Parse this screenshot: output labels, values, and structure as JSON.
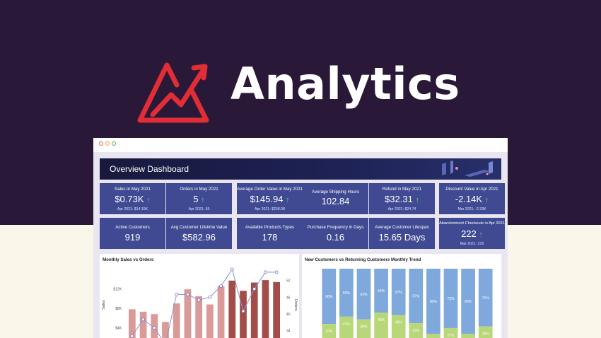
{
  "brand": {
    "title": "Analytics",
    "logo_icon": "zoho-analytics-logo-icon",
    "accent": "#e12d35"
  },
  "colors": {
    "background_top": "#2a1838",
    "background_bottom": "#fbf6ea",
    "kpi_bg": "#3f4a93",
    "up_arrow": "#63d283"
  },
  "window": {
    "controls": [
      "close",
      "minimize",
      "maximize"
    ]
  },
  "dashboard": {
    "title": "Overview Dashboard",
    "kpis_row1": [
      {
        "label": "Sales in May 2021",
        "value": "$0.73K",
        "arrow": "↑",
        "sub": "Apr 2021: $14.19K"
      },
      {
        "label": "Orders in May 2021",
        "value": "5",
        "arrow": "↑",
        "sub": "Apr 2021: 55"
      },
      {
        "label": "Average Order Value in May 2021",
        "value": "$145.94",
        "arrow": "↑",
        "sub": "Apr 2021: $258.08"
      },
      {
        "label": "Average Shipping Hours",
        "value": "102.84",
        "arrow": "",
        "sub": ""
      },
      {
        "label": "Refund in May 2021",
        "value": "$32.31",
        "arrow": "↑",
        "sub": "Apr 2021: $24.74"
      },
      {
        "label": "Discount Value in Apr 2021",
        "value": "-2.14K",
        "arrow": "↑",
        "sub": "Mar 2021: -2.33K"
      }
    ],
    "kpis_row2": [
      {
        "label": "Active Customers",
        "value": "919",
        "arrow": "",
        "sub": ""
      },
      {
        "label": "Avg Customer Lifetime Value",
        "value": "$582.96",
        "arrow": "",
        "sub": ""
      },
      {
        "label": "Available Products Types",
        "value": "178",
        "arrow": "",
        "sub": ""
      },
      {
        "label": "Purchase Frequency in Days",
        "value": "0.16",
        "arrow": "",
        "sub": ""
      },
      {
        "label": "Average Customer Lifespan",
        "value": "15.65 Days",
        "arrow": "",
        "sub": ""
      },
      {
        "label": "Abandonment Checkouts in Apr 2021",
        "value": "222",
        "arrow": "↑",
        "sub": "Mar 2021: 216"
      }
    ]
  },
  "chart_data": [
    {
      "type": "bar",
      "title": "Monthly Sales vs Orders",
      "xlabel": "",
      "ylabel": "Sales",
      "y2label": "Orders",
      "y_ticks": [
        "$4K",
        "$8K",
        "$12K"
      ],
      "y2_ticks": [
        "34",
        "40",
        "46",
        "52"
      ],
      "ylim": [
        0,
        16000
      ],
      "y2lim": [
        28,
        56
      ],
      "series": [
        {
          "values": [
            7800,
            7300,
            6800,
            5200,
            9000,
            11900,
            10500,
            8800,
            12600,
            13700,
            11600,
            13300,
            13800,
            13400
          ],
          "colors": [
            "#d99a98",
            "#d99a98",
            "#d99a98",
            "#d99a98",
            "#d99a98",
            "#d99a98",
            "#d99a98",
            "#d99a98",
            "#d99a98",
            "#a24d48",
            "#a24d48",
            "#a24d48",
            "#a24d48",
            "#a24d48"
          ]
        },
        {
          "values": [
            32,
            38,
            35,
            29,
            47,
            47,
            45,
            46,
            50,
            56,
            41,
            49,
            55,
            55
          ]
        }
      ]
    },
    {
      "type": "bar",
      "title": "New Customers vs Returning Customers Monthly Trend",
      "series": [
        {
          "values": [
            68,
            59,
            63,
            54,
            57,
            67,
            80,
            73,
            80,
            71
          ]
        },
        {
          "values": [
            32,
            41,
            38,
            46,
            43,
            33,
            20,
            27,
            20,
            29
          ]
        }
      ],
      "colors": [
        "#7fa8dc",
        "#b8d779"
      ]
    }
  ]
}
